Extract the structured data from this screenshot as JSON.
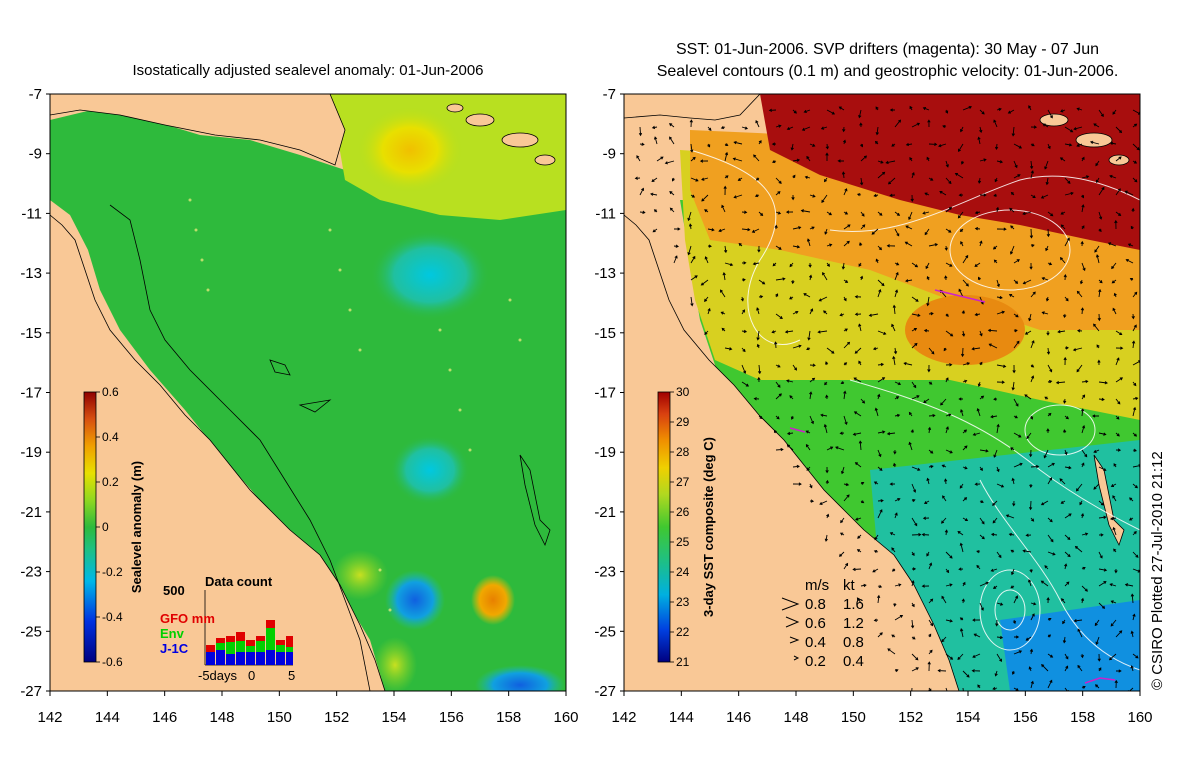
{
  "left_panel": {
    "title": "Isostatically adjusted sealevel anomaly: 01-Jun-2006",
    "colorbar": {
      "label": "Sealevel anomaly (m)",
      "ticks": [
        "0.6",
        "0.4",
        "0.2",
        "0",
        "-0.2",
        "-0.4",
        "-0.6"
      ],
      "range": [
        -0.6,
        0.6
      ]
    },
    "data_count": {
      "title": "Data count",
      "ymax_label": "500",
      "legend": [
        {
          "label": "GFO mm",
          "color": "#e00000"
        },
        {
          "label": "Env",
          "color": "#00d000"
        },
        {
          "label": "J-1C",
          "color": "#0000e0"
        }
      ],
      "xticks": [
        "-5days",
        "0",
        "5"
      ]
    }
  },
  "right_panel": {
    "title_line1": "SST: 01-Jun-2006. SVP drifters (magenta): 30 May - 07 Jun",
    "title_line2": "Sealevel contours (0.1 m) and geostrophic velocity: 01-Jun-2006.",
    "colorbar": {
      "label": "3-day SST composite (deg C)",
      "ticks": [
        "30",
        "29",
        "28",
        "27",
        "26",
        "25",
        "24",
        "23",
        "22",
        "21"
      ],
      "range": [
        21,
        30
      ]
    },
    "velocity_legend": {
      "headers": [
        "m/s",
        "kt"
      ],
      "rows": [
        [
          "0.8",
          "1.6"
        ],
        [
          "0.6",
          "1.2"
        ],
        [
          "0.4",
          "0.8"
        ],
        [
          "0.2",
          "0.4"
        ]
      ]
    }
  },
  "axes": {
    "x_ticks": [
      "142",
      "144",
      "146",
      "148",
      "150",
      "152",
      "154",
      "156",
      "158",
      "160"
    ],
    "y_ticks": [
      "-7",
      "-9",
      "-11",
      "-13",
      "-15",
      "-17",
      "-19",
      "-21",
      "-23",
      "-25",
      "-27"
    ],
    "lon_range": [
      142,
      160
    ],
    "lat_range": [
      -27,
      -7
    ]
  },
  "credit": "© CSIRO Plotted 27-Jul-2010 21:12",
  "colors": {
    "land": "#f9c896",
    "sla_main": "#2eba3c",
    "sst_hot": "#a80e0e"
  }
}
